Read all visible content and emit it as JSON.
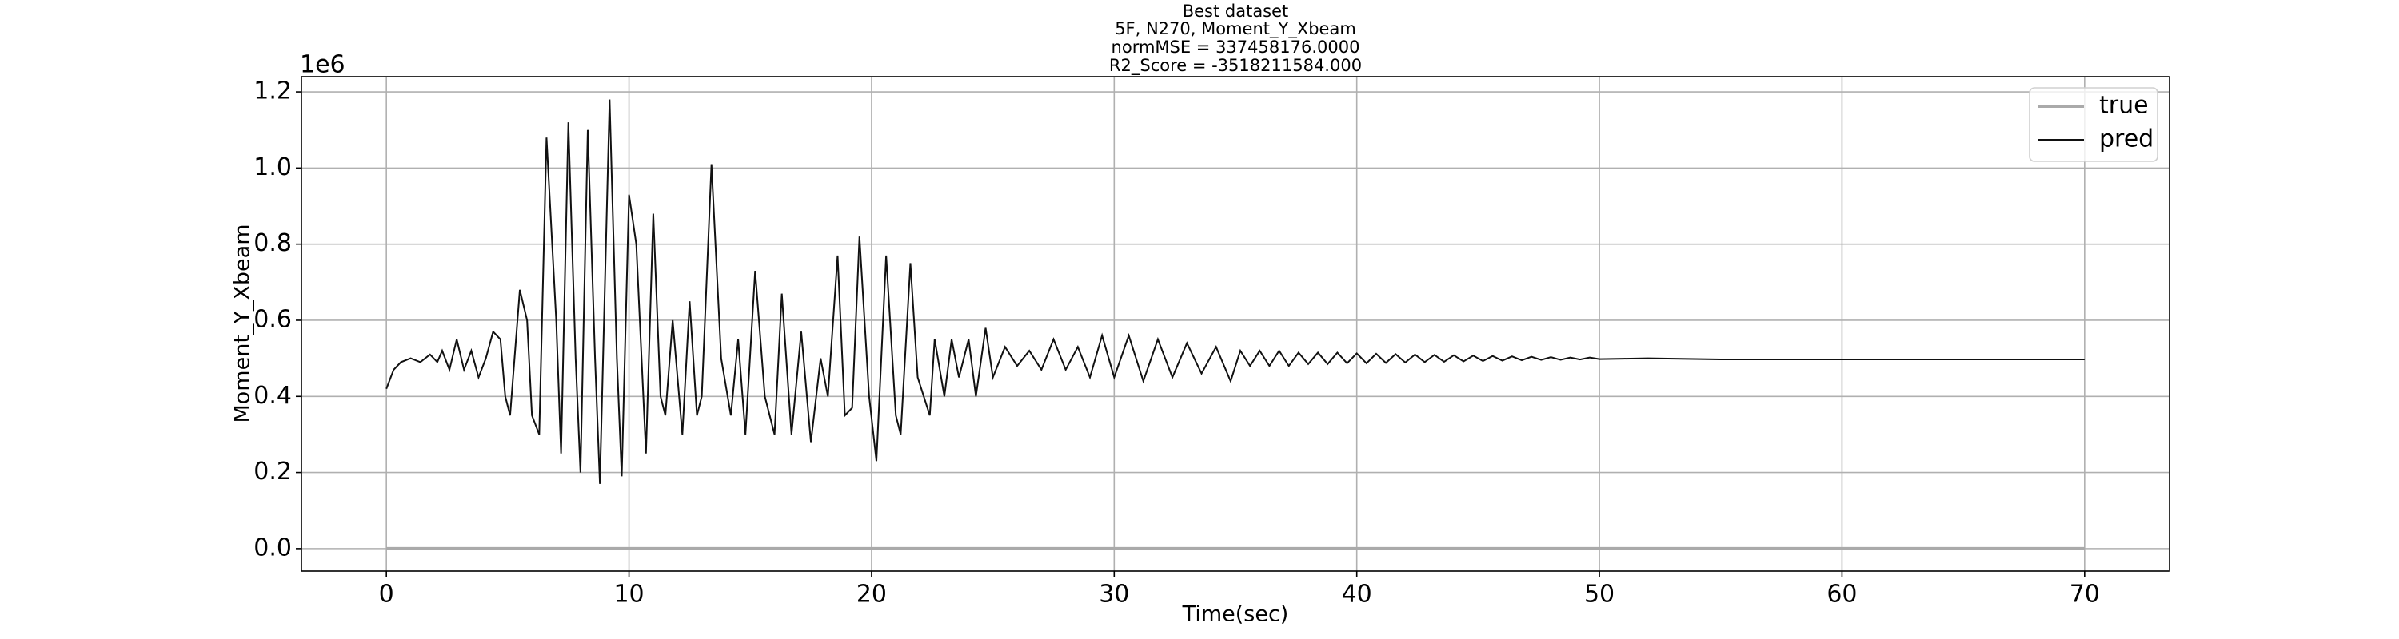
{
  "chart_data": {
    "type": "line",
    "title": [
      "Best dataset",
      "5F, N270, Moment_Y_Xbeam",
      "normMSE = 337458176.0000",
      "R2_Score = -3518211584.000"
    ],
    "x_label": "Time(sec)",
    "y_label": "Moment_Y_Xbeam",
    "y_offset_label": "1e6",
    "xlim": [
      -3.5,
      73.5
    ],
    "ylim": [
      -0.059,
      1.24
    ],
    "xticks": [
      0,
      10,
      20,
      30,
      40,
      50,
      60,
      70
    ],
    "yticks": [
      {
        "value": 0,
        "label": "0.0"
      },
      0.2,
      0.4,
      0.6,
      0.8,
      {
        "value": 1,
        "label": "1.0"
      },
      1.2
    ],
    "grid": true,
    "legend": "upper right",
    "series": [
      {
        "name": "true",
        "color": "#aaaaaa",
        "x": [
          0,
          70
        ],
        "values": [
          0,
          0
        ]
      },
      {
        "name": "pred",
        "color": "#111111",
        "x": [
          0,
          0.3,
          0.6,
          1.0,
          1.4,
          1.8,
          2.1,
          2.3,
          2.6,
          2.9,
          3.2,
          3.5,
          3.8,
          4.1,
          4.4,
          4.7,
          4.9,
          5.1,
          5.5,
          5.8,
          6.0,
          6.3,
          6.6,
          7.0,
          7.2,
          7.5,
          7.8,
          8.0,
          8.3,
          8.6,
          8.8,
          9.2,
          9.5,
          9.7,
          10.0,
          10.3,
          10.7,
          11.0,
          11.3,
          11.5,
          11.8,
          12.2,
          12.5,
          12.8,
          13.0,
          13.4,
          13.8,
          14.2,
          14.5,
          14.8,
          15.2,
          15.6,
          16.0,
          16.3,
          16.7,
          17.1,
          17.5,
          17.9,
          18.2,
          18.6,
          18.9,
          19.2,
          19.5,
          19.9,
          20.2,
          20.6,
          21.0,
          21.2,
          21.6,
          21.9,
          22.4,
          22.6,
          23.0,
          23.3,
          23.6,
          24.0,
          24.3,
          24.7,
          25.0,
          25.5,
          26.0,
          26.5,
          27.0,
          27.5,
          28.0,
          28.5,
          29.0,
          29.5,
          30.0,
          30.6,
          31.2,
          31.8,
          32.4,
          33.0,
          33.6,
          34.2,
          34.8,
          35.2,
          35.6,
          36.0,
          36.4,
          36.8,
          37.2,
          37.6,
          38.0,
          38.4,
          38.8,
          39.2,
          39.6,
          40.0,
          40.4,
          40.8,
          41.2,
          41.6,
          42.0,
          42.4,
          42.8,
          43.2,
          43.6,
          44.0,
          44.4,
          44.8,
          45.2,
          45.6,
          46.0,
          46.4,
          46.8,
          47.2,
          47.6,
          48.0,
          48.4,
          48.8,
          49.2,
          49.6,
          50.0,
          51,
          52,
          55,
          60,
          70
        ],
        "values": [
          0.42,
          0.47,
          0.49,
          0.5,
          0.49,
          0.51,
          0.49,
          0.52,
          0.47,
          0.55,
          0.47,
          0.52,
          0.45,
          0.5,
          0.57,
          0.55,
          0.4,
          0.35,
          0.68,
          0.6,
          0.35,
          0.3,
          1.08,
          0.6,
          0.25,
          1.12,
          0.5,
          0.2,
          1.1,
          0.5,
          0.17,
          1.18,
          0.5,
          0.19,
          0.93,
          0.8,
          0.25,
          0.88,
          0.4,
          0.35,
          0.6,
          0.3,
          0.65,
          0.35,
          0.4,
          1.01,
          0.5,
          0.35,
          0.55,
          0.3,
          0.73,
          0.4,
          0.3,
          0.67,
          0.3,
          0.57,
          0.28,
          0.5,
          0.4,
          0.77,
          0.35,
          0.37,
          0.82,
          0.4,
          0.23,
          0.77,
          0.35,
          0.3,
          0.75,
          0.45,
          0.35,
          0.55,
          0.4,
          0.55,
          0.45,
          0.55,
          0.4,
          0.58,
          0.45,
          0.53,
          0.48,
          0.52,
          0.47,
          0.55,
          0.47,
          0.53,
          0.45,
          0.56,
          0.45,
          0.56,
          0.44,
          0.55,
          0.45,
          0.54,
          0.46,
          0.53,
          0.44,
          0.52,
          0.48,
          0.52,
          0.48,
          0.52,
          0.48,
          0.515,
          0.485,
          0.515,
          0.485,
          0.515,
          0.487,
          0.513,
          0.487,
          0.512,
          0.488,
          0.511,
          0.489,
          0.51,
          0.49,
          0.509,
          0.491,
          0.508,
          0.492,
          0.507,
          0.493,
          0.506,
          0.494,
          0.505,
          0.495,
          0.504,
          0.496,
          0.503,
          0.496,
          0.502,
          0.497,
          0.502,
          0.498,
          0.499,
          0.5,
          0.497,
          0.497,
          0.497
        ]
      }
    ]
  }
}
